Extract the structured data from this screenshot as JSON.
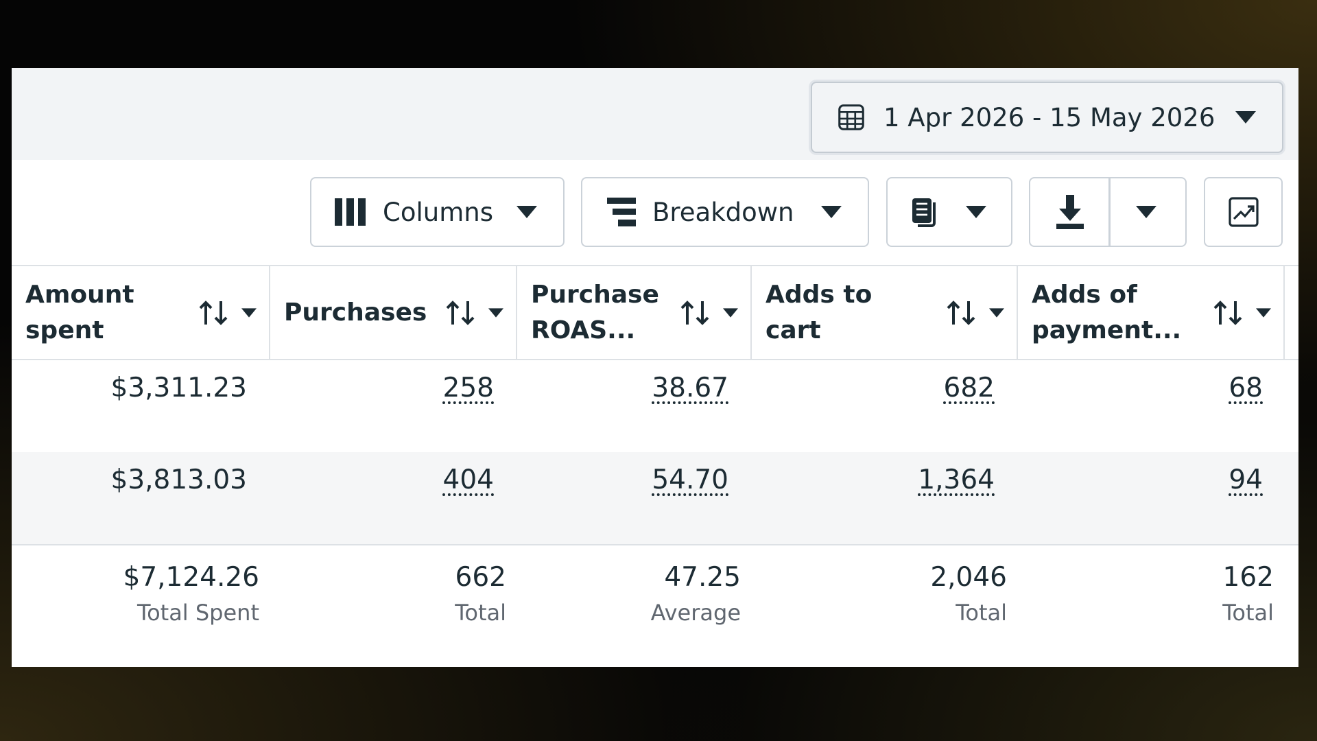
{
  "date_range": "1 Apr 2026 - 15 May 2026",
  "toolbar": {
    "columns": "Columns",
    "breakdown": "Breakdown"
  },
  "table": {
    "headers": [
      "Amount spent",
      "Purchases",
      "Purchase ROAS...",
      "Adds to cart",
      "Adds of payment..."
    ],
    "rows": [
      [
        "$3,311.23",
        "258",
        "38.67",
        "682",
        "68"
      ],
      [
        "$3,813.03",
        "404",
        "54.70",
        "1,364",
        "94"
      ]
    ],
    "totals": [
      "$7,124.26",
      "662",
      "47.25",
      "2,046",
      "162"
    ],
    "total_labels": [
      "Total Spent",
      "Total",
      "Average",
      "Total",
      "Total"
    ]
  }
}
